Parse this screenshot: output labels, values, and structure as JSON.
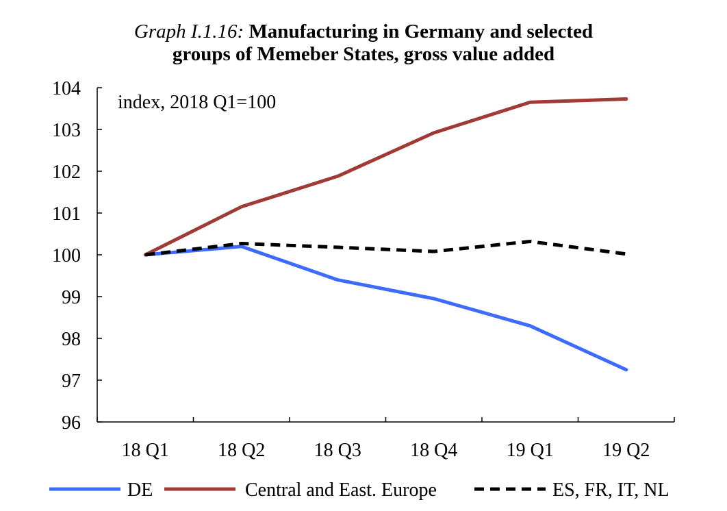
{
  "title": {
    "prefix": "Graph I.1.16:",
    "line1": "Manufacturing in Germany and selected",
    "line2": "groups of Memeber States, gross value added"
  },
  "chart_data": {
    "type": "line",
    "categories": [
      "18 Q1",
      "18 Q2",
      "18 Q3",
      "18 Q4",
      "19 Q1",
      "19 Q2"
    ],
    "annotation": "index, 2018 Q1=100",
    "ylim": [
      96,
      104
    ],
    "yticks": [
      "96",
      "97",
      "98",
      "99",
      "100",
      "101",
      "102",
      "103",
      "104"
    ],
    "grid": false,
    "legend_position": "bottom",
    "series": [
      {
        "name": "DE",
        "color": "#3d6bff",
        "dash": "solid",
        "values": [
          100.0,
          100.2,
          99.4,
          98.95,
          98.3,
          97.25
        ]
      },
      {
        "name": "Central and East. Europe",
        "color": "#a03a35",
        "dash": "solid",
        "values": [
          100.0,
          101.15,
          101.88,
          102.92,
          103.65,
          103.73
        ]
      },
      {
        "name": "ES, FR, IT, NL",
        "color": "#000000",
        "dash": "dashed",
        "values": [
          100.0,
          100.27,
          100.18,
          100.08,
          100.32,
          100.02
        ]
      }
    ]
  }
}
